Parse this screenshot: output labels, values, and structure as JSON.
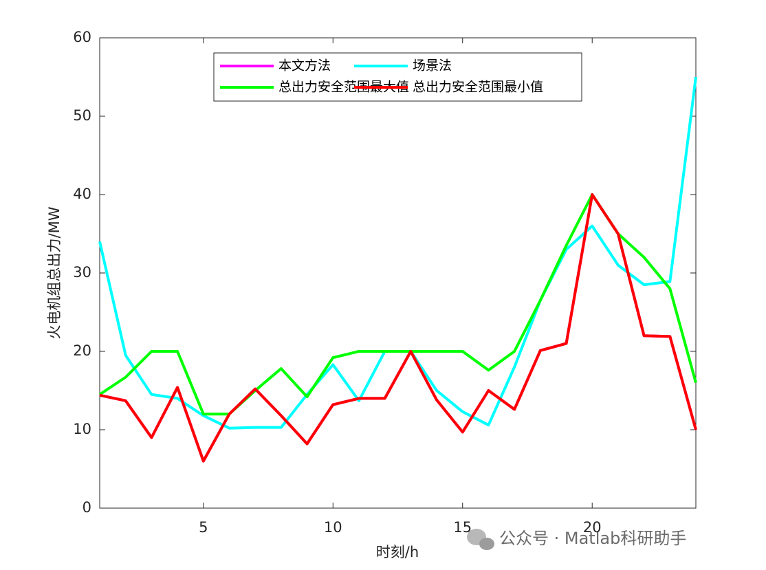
{
  "chart_data": {
    "type": "line",
    "xlabel": "时刻/h",
    "ylabel": "火电机组总出力/MW",
    "x": [
      1,
      2,
      3,
      4,
      5,
      6,
      7,
      8,
      9,
      10,
      11,
      12,
      13,
      14,
      15,
      16,
      17,
      18,
      19,
      20,
      21,
      22,
      23,
      24
    ],
    "series": [
      {
        "name": "本文方法",
        "color": "#ff00ff",
        "values": [
          14.4,
          13.7,
          9,
          15.4,
          6,
          12,
          15.2,
          11.8,
          8.2,
          13.2,
          14,
          14,
          20,
          13.8,
          9.7,
          15,
          12.6,
          20.1,
          21,
          40,
          35,
          22,
          21.9,
          10
        ]
      },
      {
        "name": "场景法",
        "color": "#00ffff",
        "values": [
          34,
          19.5,
          14.5,
          14,
          11.8,
          10.2,
          10.3,
          10.3,
          14.5,
          18.3,
          13.7,
          20,
          20,
          15,
          12.3,
          10.6,
          18,
          26.5,
          33,
          36,
          31,
          28.5,
          28.9,
          55
        ]
      },
      {
        "name": "总出力安全范围最大值",
        "color": "#00ff00",
        "values": [
          14.5,
          16.7,
          20,
          20,
          12,
          12,
          15,
          17.8,
          14.2,
          19.2,
          20,
          20,
          20,
          20,
          20,
          17.6,
          20,
          26.5,
          33.5,
          40,
          35,
          32,
          28,
          16
        ]
      },
      {
        "name": "总出力安全范围最小值",
        "color": "#ff0000",
        "values": [
          14.4,
          13.7,
          9,
          15.4,
          6,
          12,
          15.2,
          11.8,
          8.2,
          13.2,
          14,
          14,
          20,
          13.8,
          9.7,
          15,
          12.6,
          20.1,
          21,
          40,
          35,
          22,
          21.9,
          10
        ]
      }
    ],
    "xlim": [
      1,
      24
    ],
    "xticks": [
      5,
      10,
      15,
      20
    ],
    "ylim": [
      0,
      60
    ],
    "yticks": [
      0,
      10,
      20,
      30,
      40,
      50,
      60
    ],
    "legend": "top",
    "watermark": "公众号 · Matlab科研助手"
  }
}
